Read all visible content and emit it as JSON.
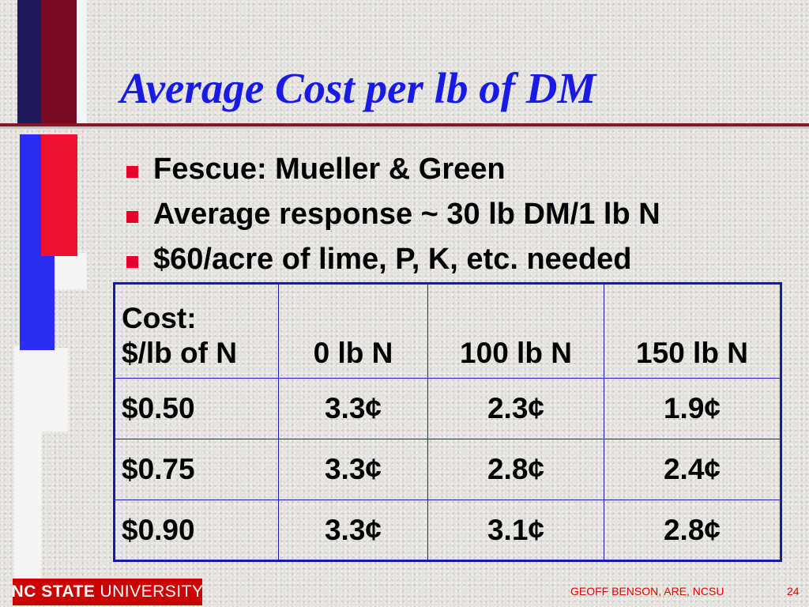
{
  "slide": {
    "title": "Average Cost per lb of DM",
    "bullets": [
      "Fescue: Mueller & Green",
      "Average response ~ 30 lb DM/1 lb N",
      "$60/acre of lime, P, K, etc. needed"
    ]
  },
  "table": {
    "header": {
      "cost_line1": "Cost:",
      "cost_line2": "$/lb of N",
      "cols": [
        "0 lb N",
        "100 lb N",
        "150 lb N"
      ]
    },
    "rows": [
      {
        "cost": "$0.50",
        "values": [
          "3.3¢",
          "2.3¢",
          "1.9¢"
        ]
      },
      {
        "cost": "$0.75",
        "values": [
          "3.3¢",
          "2.8¢",
          "2.4¢"
        ]
      },
      {
        "cost": "$0.90",
        "values": [
          "3.3¢",
          "3.1¢",
          "2.8¢"
        ]
      }
    ]
  },
  "footer": {
    "logo_bold": "NC STATE",
    "logo_regular": "UNIVERSITY",
    "author": "GEOFF BENSON, ARE, NCSU",
    "page_number": "24"
  },
  "colors": {
    "title": "#1a1ae6",
    "bullet": "#e8002c",
    "table_border": "#1a1aa6",
    "logo_bg": "#cc0000",
    "footer_text": "#e00000",
    "rule": "#8c1428"
  }
}
